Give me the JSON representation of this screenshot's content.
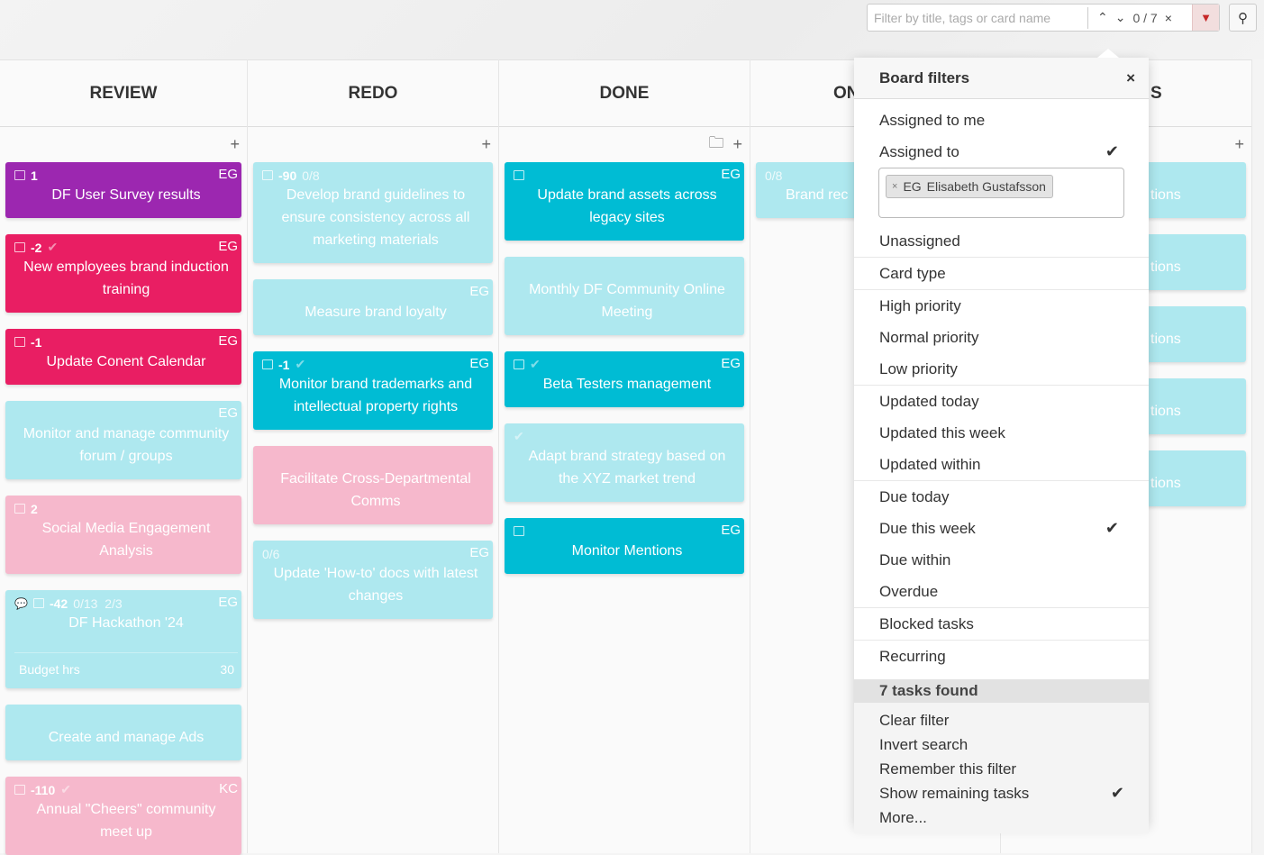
{
  "search": {
    "placeholder": "Filter by title, tags or card name",
    "count": "0 / 7",
    "prev": "^",
    "next": "v",
    "clear": "×"
  },
  "colors": {
    "purple": "#9c27b0",
    "red": "#e91e63",
    "cyan": "#00bcd4",
    "light_cyan": "#aee8ef",
    "light_pink": "#f6b8cc",
    "filter_active": "#c62828"
  },
  "columns": [
    {
      "title": "REVIEW",
      "cards": [
        {
          "color": "purple",
          "num": "1",
          "owner": "EG",
          "calendar": true,
          "title": "DF User Survey results"
        },
        {
          "color": "red",
          "num": "-2",
          "check": true,
          "owner": "EG",
          "calendar": true,
          "title": "New employees brand induction training"
        },
        {
          "color": "red",
          "num": "-1",
          "owner": "EG",
          "calendar": true,
          "title": "Update Conent Calendar"
        },
        {
          "color": "lcyan",
          "owner": "EG",
          "title": "Monitor and manage community forum / groups"
        },
        {
          "color": "lpink",
          "num": "2",
          "calendar": true,
          "title": "Social Media Engagement Analysis"
        },
        {
          "color": "lcyan",
          "comment": true,
          "calendar": true,
          "num": "-42",
          "extra": "0/13  2/3",
          "owner": "EG",
          "title": "DF Hackathon '24",
          "budget_label": "Budget hrs",
          "budget_value": "30"
        },
        {
          "color": "lcyan",
          "title": "Create and manage Ads"
        },
        {
          "color": "lpink",
          "num": "-110",
          "check": true,
          "owner": "KC",
          "calendar": true,
          "title": "Annual \"Cheers\" community meet up"
        }
      ]
    },
    {
      "title": "REDO",
      "cards": [
        {
          "color": "lcyan",
          "num": "-90",
          "extra": "0/8",
          "calendar": true,
          "title": "Develop brand guidelines to ensure consistency across all marketing materials"
        },
        {
          "color": "lcyan",
          "owner": "EG",
          "title": "Measure brand loyalty"
        },
        {
          "color": "cyan",
          "num": "-1",
          "check": true,
          "owner": "EG",
          "calendar": true,
          "title": "Monitor brand trademarks and intellectual property rights"
        },
        {
          "color": "lpink",
          "title": "Facilitate Cross-Departmental Comms"
        },
        {
          "color": "lcyan",
          "extra": "0/6",
          "owner": "EG",
          "title": "Update 'How-to' docs with latest changes"
        }
      ]
    },
    {
      "title": "DONE",
      "folder": true,
      "cards": [
        {
          "color": "cyan",
          "owner": "EG",
          "calendar": true,
          "title": "Update brand assets across legacy sites"
        },
        {
          "color": "lcyan",
          "title": "Monthly DF Community Online Meeting"
        },
        {
          "color": "cyan",
          "check": true,
          "owner": "EG",
          "calendar": true,
          "title": "Beta Testers management"
        },
        {
          "color": "lcyan",
          "check": true,
          "title": "Adapt brand strategy based on the XYZ market trend"
        },
        {
          "color": "cyan",
          "owner": "EG",
          "calendar": true,
          "title": "Monitor Mentions"
        }
      ]
    },
    {
      "title": "ON",
      "cards": [
        {
          "color": "lcyan",
          "extra": "0/8",
          "title": "Brand rec"
        }
      ]
    },
    {
      "title": "S",
      "cards": [
        {
          "color": "lcyan",
          "title": "tions"
        },
        {
          "color": "lcyan",
          "title": "tions"
        },
        {
          "color": "lcyan",
          "title": "tions"
        },
        {
          "color": "lcyan",
          "title": "tions"
        },
        {
          "color": "lcyan",
          "title": "tions"
        }
      ]
    }
  ],
  "filters": {
    "title": "Board filters",
    "close": "×",
    "groups": [
      [
        {
          "label": "Assigned to me"
        },
        {
          "label": "Assigned to",
          "checked": true,
          "tags": [
            {
              "initials": "EG",
              "name": "Elisabeth Gustafsson"
            }
          ]
        },
        {
          "label": "Unassigned"
        }
      ],
      [
        {
          "label": "Card type"
        }
      ],
      [
        {
          "label": "High priority"
        },
        {
          "label": "Normal priority"
        },
        {
          "label": "Low priority"
        }
      ],
      [
        {
          "label": "Updated today"
        },
        {
          "label": "Updated this week"
        },
        {
          "label": "Updated within"
        }
      ],
      [
        {
          "label": "Due today"
        },
        {
          "label": "Due this week",
          "checked": true
        },
        {
          "label": "Due within"
        },
        {
          "label": "Overdue"
        }
      ],
      [
        {
          "label": "Blocked tasks"
        }
      ],
      [
        {
          "label": "Recurring"
        }
      ]
    ],
    "found": "7 tasks found",
    "actions": [
      {
        "label": "Clear filter"
      },
      {
        "label": "Invert search"
      },
      {
        "label": "Remember this filter"
      },
      {
        "label": "Show remaining tasks",
        "checked": true
      },
      {
        "label": "More..."
      }
    ]
  }
}
